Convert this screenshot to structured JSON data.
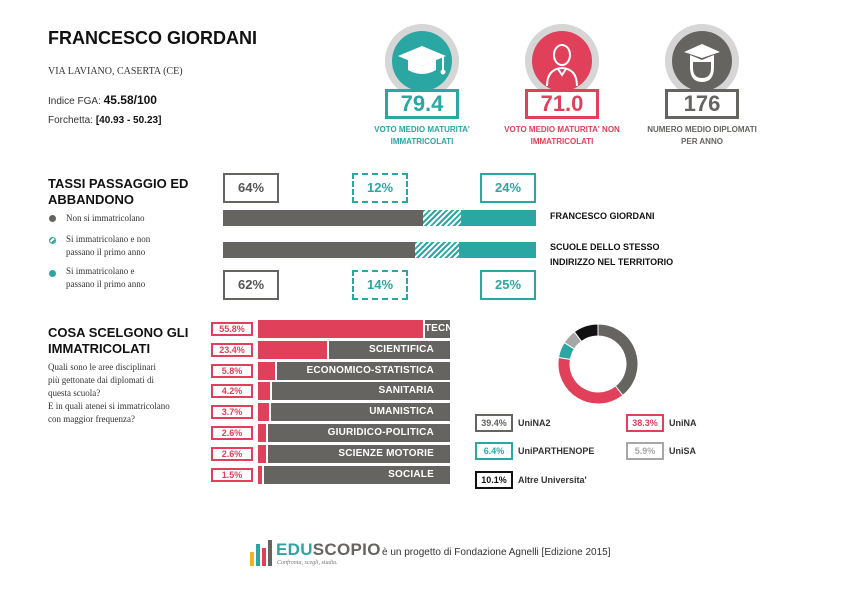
{
  "header": {
    "school_name": "FRANCESCO GIORDANI",
    "address": "VIA LAVIANO, CASERTA (CE)",
    "fga_label": "Indice FGA:",
    "fga_value": "45.58/100",
    "fork_label": "Forchetta:",
    "fork_value": "[40.93 - 50.23]"
  },
  "stats": [
    {
      "value": "79.4",
      "caption_line1": "VOTO MEDIO MATURITA'",
      "caption_line2": "IMMATRICOLATI",
      "icon": "graduation-cap-icon",
      "color": "#2aa7a2"
    },
    {
      "value": "71.0",
      "caption_line1": "VOTO MEDIO MATURITA' NON",
      "caption_line2": "IMMATRICOLATI",
      "icon": "person-icon",
      "color": "#e0405a"
    },
    {
      "value": "176",
      "caption_line1": "NUMERO MEDIO DIPLOMATI",
      "caption_line2": "PER ANNO",
      "icon": "graduate-person-icon",
      "color": "#666461"
    }
  ],
  "passaggio": {
    "title_line1": "TASSI PASSAGGIO ED",
    "title_line2": "ABBANDONO",
    "legend": [
      {
        "line1": "Non si immatricolano",
        "line2": "",
        "style": "solid-gray"
      },
      {
        "line1": "Si immatricolano e non",
        "line2": "passano il primo anno",
        "style": "hatched-teal"
      },
      {
        "line1": "Si immatricolano e",
        "line2": "passano il primo anno",
        "style": "solid-teal"
      }
    ],
    "school": {
      "label": "FRANCESCO GIORDANI",
      "not_enrolled": 64,
      "enrolled_not_passed": 12,
      "enrolled_passed": 24,
      "not_enrolled_label": "64%",
      "enrolled_not_passed_label": "12%",
      "enrolled_passed_label": "24%"
    },
    "territory": {
      "label_line1": "SCUOLE DELLO STESSO",
      "label_line2": "INDIRIZZO NEL TERRITORIO",
      "not_enrolled": 62,
      "enrolled_not_passed": 14,
      "enrolled_passed": 25,
      "not_enrolled_label": "62%",
      "enrolled_not_passed_label": "14%",
      "enrolled_passed_label": "25%"
    }
  },
  "scelte": {
    "title_line1": "COSA SCELGONO GLI",
    "title_line2": "IMMATRICOLATI",
    "description": [
      "Quali sono le aree disciplinari",
      "più gettonate dai diplomati di",
      "questa scuola?",
      "E in quali atenei si immatricolano",
      "con maggior frequenza?"
    ],
    "areas": [
      {
        "label": "55.8%",
        "name": "TECNICA",
        "value": 55.8
      },
      {
        "label": "23.4%",
        "name": "SCIENTIFICA",
        "value": 23.4
      },
      {
        "label": "5.8%",
        "name": "ECONOMICO-STATISTICA",
        "value": 5.8
      },
      {
        "label": "4.2%",
        "name": "SANITARIA",
        "value": 4.2
      },
      {
        "label": "3.7%",
        "name": "UMANISTICA",
        "value": 3.7
      },
      {
        "label": "2.6%",
        "name": "GIURIDICO-POLITICA",
        "value": 2.6
      },
      {
        "label": "2.6%",
        "name": "SCIENZE MOTORIE",
        "value": 2.6
      },
      {
        "label": "1.5%",
        "name": "SOCIALE",
        "value": 1.5
      }
    ]
  },
  "chart_data": {
    "type": "pie",
    "categories": [
      "UniNA2",
      "UniNA",
      "UniPARTHENOPE",
      "UniSA",
      "Altre Universita'"
    ],
    "values": [
      39.4,
      38.3,
      6.4,
      5.9,
      10.1
    ],
    "labels": [
      "39.4%",
      "38.3%",
      "6.4%",
      "5.9%",
      "10.1%"
    ],
    "colors": [
      "#666461",
      "#e0405a",
      "#2aa7a2",
      "#a7a7a7",
      "#111111"
    ]
  },
  "footer": {
    "logo_edu": "EDU",
    "logo_scopio": "SCOPIO",
    "tagline": "Confronta, scegli, studia.",
    "text": "è un progetto di Fondazione Agnelli [Edizione 2015]"
  }
}
